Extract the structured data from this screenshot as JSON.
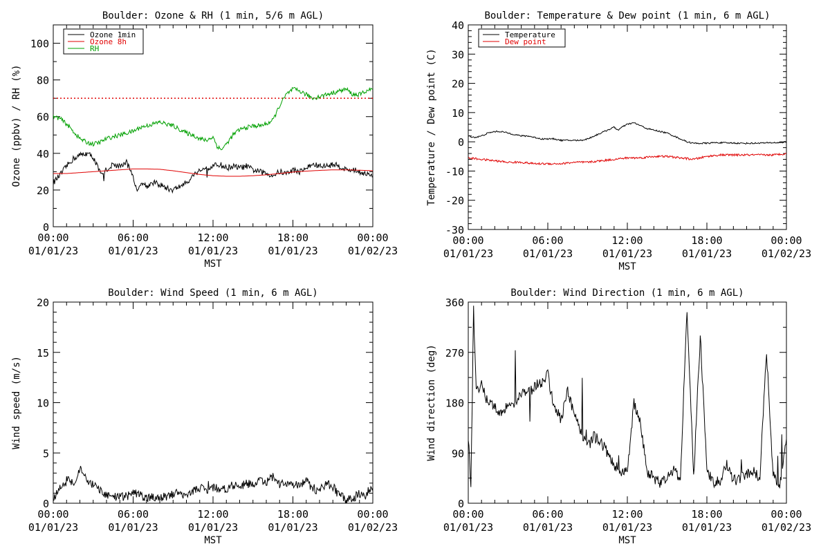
{
  "chart_data": [
    {
      "type": "line",
      "title": "Boulder: Ozone & RH (1 min, 5/6 m AGL)",
      "xlabel": "MST",
      "ylabel": "Ozone (ppbv) / RH (%)",
      "xlim": [
        0,
        24
      ],
      "ylim": [
        0,
        110
      ],
      "yticks": [
        0,
        20,
        40,
        60,
        80,
        100
      ],
      "x_tick_labels": [
        [
          "00:00",
          "01/01/23"
        ],
        [
          "06:00",
          "01/01/23"
        ],
        [
          "12:00",
          "01/01/23"
        ],
        [
          "18:00",
          "01/01/23"
        ],
        [
          "00:00",
          "01/02/23"
        ]
      ],
      "legend": "top-left",
      "series": [
        {
          "name": "Ozone 1min",
          "color": "#000000",
          "x": [
            0,
            0.5,
            1,
            1.5,
            2,
            2.5,
            3,
            3.3,
            3.6,
            4,
            4.5,
            5,
            5.5,
            6,
            6.3,
            6.6,
            7,
            7.5,
            8,
            8.5,
            9,
            9.5,
            10,
            10.5,
            11,
            11.5,
            12,
            12.5,
            13,
            13.5,
            14,
            14.5,
            15,
            15.5,
            16,
            16.5,
            17,
            17.5,
            18,
            18.5,
            19,
            19.5,
            20,
            20.5,
            21,
            21.5,
            22,
            22.5,
            23,
            23.5,
            24
          ],
          "values": [
            24,
            28,
            33,
            37,
            39,
            40,
            38,
            33,
            28,
            31,
            34,
            33,
            35,
            28,
            18,
            25,
            22,
            24,
            23,
            21,
            20,
            22,
            24,
            28,
            31,
            32,
            33,
            34,
            32,
            33,
            32,
            33,
            31,
            30,
            29,
            28,
            30,
            29,
            31,
            30,
            32,
            34,
            33,
            33,
            34,
            33,
            31,
            31,
            30,
            29,
            27
          ]
        },
        {
          "name": "Ozone 8h",
          "color": "#e00000",
          "x": [
            0,
            1,
            2,
            3,
            4,
            5,
            6,
            7,
            8,
            9,
            10,
            11,
            12,
            13,
            14,
            15,
            16,
            17,
            18,
            19,
            20,
            21,
            22,
            23,
            24
          ],
          "values": [
            29,
            29,
            29.5,
            30,
            30.5,
            31,
            31.5,
            31.5,
            31.3,
            30.5,
            29.5,
            28.5,
            27.8,
            27.5,
            27.5,
            27.8,
            28.3,
            29,
            29.8,
            30.3,
            30.7,
            31,
            31,
            30.8,
            30.5
          ]
        },
        {
          "name": "RH",
          "color": "#00a000",
          "x": [
            0,
            0.5,
            1,
            1.5,
            2,
            2.5,
            3,
            3.5,
            4,
            4.5,
            5,
            5.5,
            6,
            6.5,
            7,
            7.5,
            8,
            8.5,
            9,
            9.5,
            10,
            10.5,
            11,
            11.5,
            12,
            12.3,
            12.6,
            13,
            13.5,
            14,
            14.5,
            15,
            15.5,
            16,
            16.5,
            17,
            17.5,
            18,
            18.5,
            19,
            19.5,
            20,
            20.5,
            21,
            21.5,
            22,
            22.5,
            23,
            23.5,
            24
          ],
          "values": [
            60,
            59,
            56,
            52,
            48,
            46,
            45,
            46,
            48,
            49,
            50,
            51,
            52,
            54,
            55,
            56,
            57,
            56,
            55,
            53,
            51,
            50,
            48,
            47,
            49,
            44,
            42,
            45,
            50,
            53,
            54,
            55,
            55,
            56,
            58,
            66,
            72,
            75,
            74,
            72,
            70,
            71,
            72,
            73,
            74,
            75,
            72,
            72,
            74,
            75
          ]
        }
      ],
      "reference_line": {
        "y": 70,
        "color": "#e00000",
        "style": "dotted"
      }
    },
    {
      "type": "line",
      "title": "Boulder: Temperature & Dew point (1 min, 6 m AGL)",
      "xlabel": "MST",
      "ylabel": "Temperature / Dew point (C)",
      "xlim": [
        0,
        24
      ],
      "ylim": [
        -30,
        40
      ],
      "yticks": [
        -30,
        -20,
        -10,
        0,
        10,
        20,
        30,
        40
      ],
      "x_tick_labels": [
        [
          "00:00",
          "01/01/23"
        ],
        [
          "06:00",
          "01/01/23"
        ],
        [
          "12:00",
          "01/01/23"
        ],
        [
          "18:00",
          "01/01/23"
        ],
        [
          "00:00",
          "01/02/23"
        ]
      ],
      "legend": "top-left",
      "series": [
        {
          "name": "Temperature",
          "color": "#000000",
          "x": [
            0,
            0.5,
            1,
            1.5,
            2,
            2.5,
            3,
            3.5,
            4,
            4.5,
            5,
            5.5,
            6,
            6.5,
            7,
            7.5,
            8,
            8.5,
            9,
            9.5,
            10,
            10.5,
            11,
            11.3,
            11.6,
            12,
            12.5,
            13,
            13.5,
            14,
            14.5,
            15,
            15.5,
            16,
            16.5,
            17,
            17.5,
            18,
            18.5,
            19,
            19.5,
            20,
            20.5,
            21,
            21.5,
            22,
            22.5,
            23,
            23.5,
            24
          ],
          "values": [
            2,
            1.5,
            2,
            3,
            3.5,
            3.5,
            3,
            2.5,
            2,
            2,
            1.5,
            1,
            1,
            1,
            0.5,
            0.5,
            0.5,
            0.5,
            1,
            2,
            3,
            4,
            5,
            4,
            5,
            6,
            6.5,
            5.5,
            4.5,
            4,
            3.5,
            3,
            2,
            1,
            0,
            -0.5,
            -0.5,
            -0.5,
            -0.3,
            -0.3,
            -0.4,
            -0.4,
            -0.5,
            -0.5,
            -0.5,
            -0.4,
            -0.4,
            -0.3,
            -0.3,
            0
          ]
        },
        {
          "name": "Dew point",
          "color": "#e00000",
          "x": [
            0,
            1,
            2,
            3,
            4,
            5,
            6,
            7,
            8,
            9,
            10,
            11,
            12,
            13,
            14,
            15,
            16,
            17,
            18,
            19,
            20,
            21,
            22,
            23,
            24
          ],
          "values": [
            -5.5,
            -6,
            -6.5,
            -7,
            -7,
            -7.5,
            -7.5,
            -7.5,
            -7,
            -7,
            -6.5,
            -6,
            -5.5,
            -5.5,
            -5,
            -5,
            -5.5,
            -6,
            -5,
            -4.5,
            -4.5,
            -4.5,
            -4.5,
            -4.5,
            -4
          ]
        }
      ]
    },
    {
      "type": "line",
      "title": "Boulder: Wind Speed (1 min, 6 m AGL)",
      "xlabel": "MST",
      "ylabel": "Wind speed (m/s)",
      "xlim": [
        0,
        24
      ],
      "ylim": [
        0,
        20
      ],
      "yticks": [
        0,
        5,
        10,
        15,
        20
      ],
      "x_tick_labels": [
        [
          "00:00",
          "01/01/23"
        ],
        [
          "06:00",
          "01/01/23"
        ],
        [
          "12:00",
          "01/01/23"
        ],
        [
          "18:00",
          "01/01/23"
        ],
        [
          "00:00",
          "01/02/23"
        ]
      ],
      "series": [
        {
          "color": "#000000",
          "x": [
            0,
            0.5,
            1,
            1.5,
            2,
            2.5,
            3,
            3.5,
            4,
            4.5,
            5,
            5.5,
            6,
            6.5,
            7,
            7.5,
            8,
            8.5,
            9,
            9.5,
            10,
            10.5,
            11,
            11.5,
            12,
            12.5,
            13,
            13.5,
            14,
            14.5,
            15,
            15.5,
            16,
            16.5,
            17,
            17.5,
            18,
            18.5,
            19,
            19.5,
            20,
            20.5,
            21,
            21.5,
            22,
            22.5,
            23,
            23.5,
            24
          ],
          "values": [
            0.5,
            1.5,
            2.5,
            2.0,
            3.5,
            2.2,
            1.8,
            1.2,
            0.8,
            0.6,
            0.6,
            0.7,
            1.0,
            0.8,
            0.5,
            0.6,
            0.5,
            0.7,
            0.9,
            0.8,
            1.0,
            1.2,
            1.5,
            1.3,
            1.6,
            1.4,
            1.5,
            1.8,
            1.6,
            2.0,
            1.8,
            2.3,
            2.0,
            2.6,
            1.9,
            2.1,
            1.7,
            1.8,
            2.2,
            1.5,
            1.2,
            2.0,
            1.6,
            0.8,
            0.3,
            0.5,
            1.0,
            1.0,
            1.5
          ]
        }
      ]
    },
    {
      "type": "line",
      "title": "Boulder: Wind Direction (1 min, 6 m AGL)",
      "xlabel": "MST",
      "ylabel": "Wind direction (deg)",
      "xlim": [
        0,
        24
      ],
      "ylim": [
        0,
        360
      ],
      "yticks": [
        0,
        90,
        180,
        270,
        360
      ],
      "x_tick_labels": [
        [
          "00:00",
          "01/01/23"
        ],
        [
          "06:00",
          "01/01/23"
        ],
        [
          "12:00",
          "01/01/23"
        ],
        [
          "18:00",
          "01/01/23"
        ],
        [
          "00:00",
          "01/02/23"
        ]
      ],
      "series": [
        {
          "color": "#000000",
          "x": [
            0,
            0.2,
            0.4,
            0.6,
            1,
            1.5,
            2,
            2.5,
            3,
            3.5,
            4,
            4.5,
            5,
            5.5,
            6,
            6.3,
            6.6,
            7,
            7.5,
            8,
            8.5,
            9,
            9.5,
            10,
            10.5,
            11,
            11.5,
            12,
            12.5,
            13,
            13.5,
            14,
            14.5,
            15,
            15.5,
            16,
            16.5,
            17,
            17.5,
            18,
            18.5,
            19,
            19.5,
            20,
            20.5,
            21,
            21.5,
            22,
            22.5,
            23,
            23.5,
            24
          ],
          "values": [
            120,
            30,
            350,
            200,
            210,
            180,
            175,
            160,
            180,
            170,
            200,
            195,
            210,
            215,
            230,
            190,
            170,
            150,
            200,
            160,
            130,
            100,
            120,
            110,
            90,
            70,
            55,
            60,
            180,
            140,
            55,
            45,
            35,
            50,
            60,
            40,
            350,
            45,
            300,
            60,
            35,
            40,
            70,
            40,
            45,
            50,
            60,
            45,
            270,
            50,
            30,
            115
          ]
        }
      ]
    }
  ]
}
